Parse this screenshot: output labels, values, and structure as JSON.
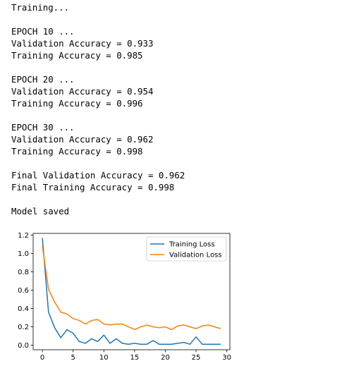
{
  "output": {
    "lines": [
      "Training...",
      "",
      "EPOCH 10 ...",
      "Validation Accuracy = 0.933",
      "Training Accuracy = 0.985",
      "",
      "EPOCH 20 ...",
      "Validation Accuracy = 0.954",
      "Training Accuracy = 0.996",
      "",
      "EPOCH 30 ...",
      "Validation Accuracy = 0.962",
      "Training Accuracy = 0.998",
      "",
      "Final Validation Accuracy = 0.962",
      "Final Training Accuracy = 0.998",
      "",
      "Model saved"
    ]
  },
  "chart_data": {
    "type": "line",
    "title": "",
    "xlabel": "",
    "ylabel": "",
    "xlim": [
      -1.5,
      30.5
    ],
    "ylim": [
      -0.05,
      1.22
    ],
    "xticks": [
      0,
      5,
      10,
      15,
      20,
      25,
      30
    ],
    "yticks": [
      0.0,
      0.2,
      0.4,
      0.6,
      0.8,
      1.0,
      1.2
    ],
    "ytick_labels": [
      "0.0",
      "0.2",
      "0.4",
      "0.6",
      "0.8",
      "1.0",
      "1.2"
    ],
    "grid": false,
    "legend_position": "top-right",
    "x": [
      0,
      1,
      2,
      3,
      4,
      5,
      6,
      7,
      8,
      9,
      10,
      11,
      12,
      13,
      14,
      15,
      16,
      17,
      18,
      19,
      20,
      21,
      22,
      23,
      24,
      25,
      26,
      27,
      28,
      29
    ],
    "series": [
      {
        "name": "Training Loss",
        "color": "#1f77b4",
        "values": [
          1.17,
          0.36,
          0.19,
          0.08,
          0.17,
          0.13,
          0.04,
          0.02,
          0.07,
          0.04,
          0.11,
          0.02,
          0.07,
          0.02,
          0.01,
          0.02,
          0.01,
          0.01,
          0.05,
          0.01,
          0.01,
          0.01,
          0.02,
          0.03,
          0.01,
          0.09,
          0.01,
          0.01,
          0.01,
          0.01
        ]
      },
      {
        "name": "Validation Loss",
        "color": "#ff7f0e",
        "values": [
          1.08,
          0.61,
          0.47,
          0.36,
          0.34,
          0.29,
          0.27,
          0.23,
          0.27,
          0.28,
          0.23,
          0.22,
          0.23,
          0.23,
          0.2,
          0.17,
          0.2,
          0.22,
          0.2,
          0.19,
          0.2,
          0.17,
          0.21,
          0.22,
          0.2,
          0.18,
          0.21,
          0.22,
          0.2,
          0.18
        ]
      }
    ]
  }
}
